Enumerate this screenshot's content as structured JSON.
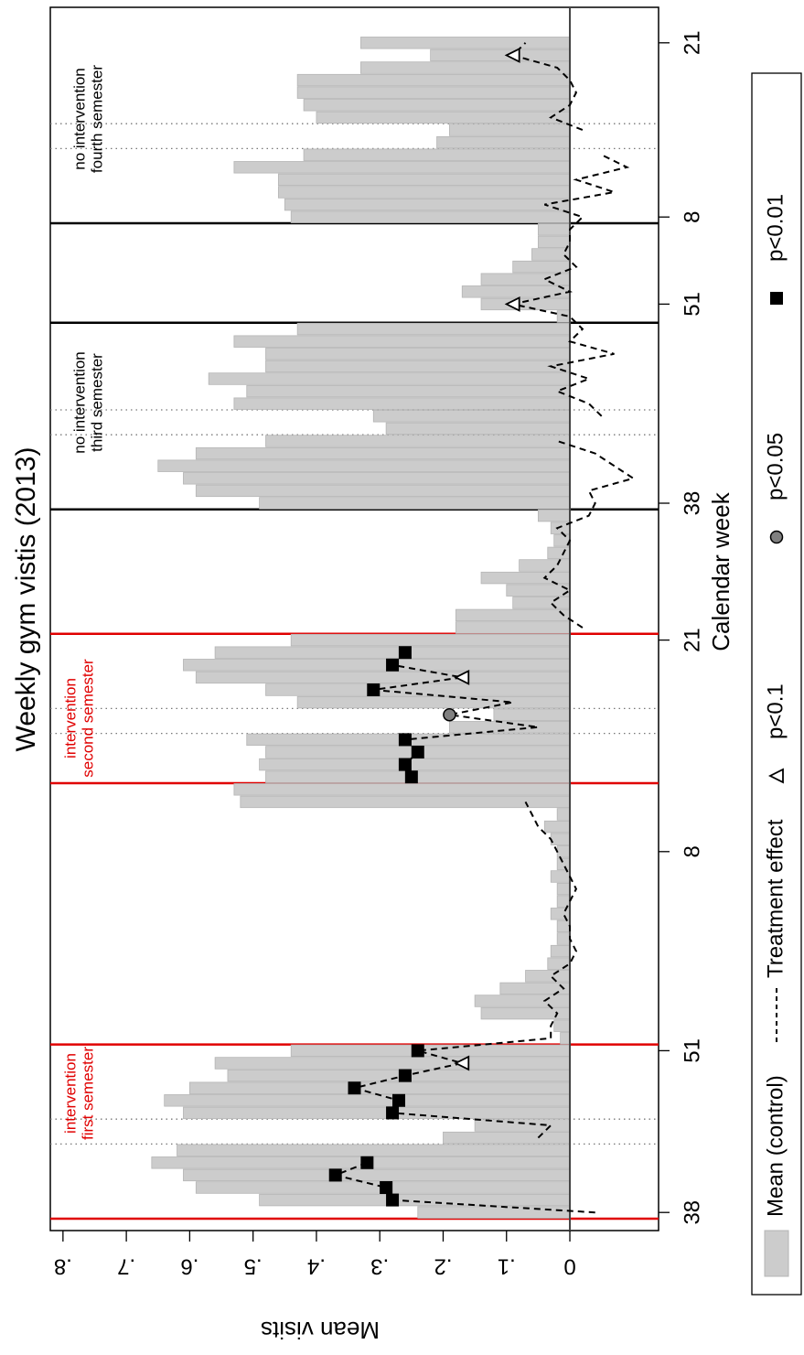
{
  "chart_data": {
    "type": "bar",
    "title": "Weekly gym vistis (2013)",
    "x_label": "Calendar week",
    "y_label": "Mean visits",
    "categories": [
      "38",
      null,
      null,
      null,
      null,
      null,
      null,
      null,
      null,
      null,
      null,
      null,
      null,
      "51",
      null,
      null,
      null,
      null,
      null,
      null,
      null,
      null,
      null,
      null,
      null,
      null,
      null,
      null,
      null,
      "8",
      null,
      null,
      null,
      null,
      null,
      null,
      null,
      null,
      null,
      null,
      null,
      null,
      null,
      null,
      null,
      null,
      "21",
      null,
      null,
      null,
      null,
      null,
      null,
      null,
      null,
      null,
      null,
      "38",
      null,
      null,
      null,
      null,
      null,
      null,
      null,
      null,
      null,
      null,
      null,
      null,
      null,
      null,
      null,
      "51",
      null,
      null,
      null,
      null,
      null,
      null,
      "8",
      null,
      null,
      null,
      null,
      null,
      null,
      null,
      null,
      null,
      null,
      null,
      null,
      null,
      "21"
    ],
    "series": [
      {
        "name": "Mean (control)",
        "type": "bar",
        "color": "#cccccc",
        "values": [
          0.24,
          0.49,
          0.59,
          0.61,
          0.66,
          0.62,
          0.2,
          0.15,
          0.61,
          0.64,
          0.6,
          0.54,
          0.56,
          0.44,
          0.015,
          0.025,
          0.14,
          0.15,
          0.11,
          0.07,
          0.035,
          0.03,
          0.02,
          0.02,
          0.03,
          0.02,
          0.02,
          0.03,
          0.02,
          0.02,
          0.03,
          0.04,
          0.02,
          0.52,
          0.53,
          0.48,
          0.49,
          0.48,
          0.51,
          0.19,
          0.12,
          0.43,
          0.48,
          0.59,
          0.61,
          0.56,
          0.44,
          0.18,
          0.18,
          0.09,
          0.1,
          0.14,
          0.08,
          0.035,
          0.025,
          0.03,
          0.05,
          0.49,
          0.59,
          0.61,
          0.65,
          0.59,
          0.48,
          0.29,
          0.31,
          0.53,
          0.51,
          0.57,
          0.48,
          0.48,
          0.53,
          0.43,
          0.02,
          0.14,
          0.17,
          0.14,
          0.09,
          0.06,
          0.05,
          0.05,
          0.44,
          0.45,
          0.46,
          0.46,
          0.53,
          0.42,
          0.21,
          0.19,
          0.4,
          0.42,
          0.43,
          0.43,
          0.33,
          0.22,
          0.33
        ]
      },
      {
        "name": "Treatment effect",
        "type": "line",
        "color": "#000000",
        "dashed": true,
        "values": [
          -0.04,
          0.28,
          0.29,
          0.37,
          0.32,
          null,
          0.05,
          0.03,
          0.28,
          0.27,
          0.34,
          0.26,
          0.17,
          0.24,
          0.03,
          0.03,
          0.02,
          0.04,
          0.01,
          0.03,
          0,
          -0.01,
          0,
          0,
          0.01,
          0,
          -0.01,
          0,
          0.01,
          0.02,
          0.03,
          0.05,
          0.06,
          0.07,
          null,
          0.25,
          0.26,
          0.24,
          0.26,
          0.05,
          0.19,
          0.09,
          0.31,
          0.17,
          0.28,
          0.26,
          null,
          -0.02,
          0.01,
          0.03,
          0,
          0.04,
          0.02,
          0.01,
          0,
          0.02,
          -0.03,
          -0.04,
          -0.03,
          -0.1,
          -0.07,
          -0.04,
          0.02,
          null,
          -0.05,
          -0.03,
          0.02,
          -0.03,
          0.03,
          -0.07,
          0,
          -0.02,
          0,
          0.09,
          0,
          0.04,
          -0.01,
          0.01,
          0,
          0,
          -0.02,
          0.04,
          -0.07,
          -0.01,
          -0.09,
          -0.05,
          null,
          -0.02,
          0.03,
          0,
          -0.01,
          0,
          0.02,
          0.09,
          0.07
        ]
      },
      {
        "name": "p<0.1",
        "type": "scatter",
        "marker": "triangle",
        "color": "#000000",
        "values": [
          null,
          null,
          null,
          null,
          null,
          null,
          null,
          null,
          null,
          null,
          null,
          null,
          0.17,
          null,
          null,
          null,
          null,
          null,
          null,
          null,
          null,
          null,
          null,
          null,
          null,
          null,
          null,
          null,
          null,
          null,
          null,
          null,
          null,
          null,
          null,
          null,
          null,
          null,
          null,
          null,
          null,
          null,
          null,
          0.17,
          null,
          null,
          null,
          null,
          null,
          null,
          null,
          null,
          null,
          null,
          null,
          null,
          null,
          null,
          null,
          null,
          null,
          null,
          null,
          null,
          null,
          null,
          null,
          null,
          null,
          null,
          null,
          null,
          null,
          0.09,
          null,
          null,
          null,
          null,
          null,
          null,
          null,
          null,
          null,
          null,
          null,
          null,
          null,
          null,
          null,
          null,
          null,
          null,
          null,
          0.09,
          null
        ]
      },
      {
        "name": "p<0.05",
        "type": "scatter",
        "marker": "circle",
        "color": "#808080",
        "values": [
          null,
          null,
          null,
          null,
          null,
          null,
          null,
          null,
          null,
          null,
          null,
          null,
          null,
          null,
          null,
          null,
          null,
          null,
          null,
          null,
          null,
          null,
          null,
          null,
          null,
          null,
          null,
          null,
          null,
          null,
          null,
          null,
          null,
          null,
          null,
          null,
          null,
          null,
          null,
          null,
          0.19,
          null,
          null,
          null,
          null,
          null,
          null,
          null,
          null,
          null,
          null,
          null,
          null,
          null,
          null,
          null,
          null,
          null,
          null,
          null,
          null,
          null,
          null,
          null,
          null,
          null,
          null,
          null,
          null,
          null,
          null,
          null,
          null,
          null,
          null,
          null,
          null,
          null,
          null,
          null,
          null,
          null,
          null,
          null,
          null,
          null,
          null,
          null,
          null,
          null,
          null,
          null,
          null,
          null,
          null
        ]
      },
      {
        "name": "p<0.01",
        "type": "scatter",
        "marker": "square",
        "color": "#000000",
        "values": [
          null,
          0.28,
          0.29,
          0.37,
          0.32,
          null,
          null,
          null,
          0.28,
          0.27,
          0.34,
          0.26,
          null,
          0.24,
          null,
          null,
          null,
          null,
          null,
          null,
          null,
          null,
          null,
          null,
          null,
          null,
          null,
          null,
          null,
          null,
          null,
          null,
          null,
          null,
          null,
          0.25,
          0.26,
          0.24,
          0.26,
          null,
          null,
          null,
          0.31,
          null,
          0.28,
          0.26,
          null,
          null,
          null,
          null,
          null,
          null,
          null,
          null,
          null,
          null,
          null,
          null,
          null,
          null,
          null,
          null,
          null,
          null,
          null,
          null,
          null,
          null,
          null,
          null,
          null,
          null,
          null,
          null,
          null,
          null,
          null,
          null,
          null,
          null,
          null,
          null,
          null,
          null,
          null,
          null,
          null,
          null,
          null,
          null,
          null,
          null,
          null,
          null,
          null
        ]
      }
    ],
    "ylim": [
      -0.14,
      0.82
    ],
    "yticks": [
      0,
      {
        "value": 0.1,
        "label": ".1"
      },
      {
        "value": 0.2,
        "label": ".2"
      },
      {
        "value": 0.3,
        "label": ".3"
      },
      {
        "value": 0.4,
        "label": ".4"
      },
      {
        "value": 0.5,
        "label": ".5"
      },
      {
        "value": 0.6,
        "label": ".6"
      },
      {
        "value": 0.7,
        "label": ".7"
      },
      {
        "value": 0.8,
        "label": ".8"
      }
    ],
    "reference_lines": {
      "red": {
        "color": "#e00000",
        "at": [
          0,
          14,
          35,
          47
        ]
      },
      "black": {
        "color": "#000000",
        "at": [
          57,
          72,
          80
        ]
      },
      "dotted": {
        "color": "#777777",
        "at": [
          6,
          8,
          39,
          41,
          63,
          65,
          86,
          88
        ]
      }
    },
    "annotations": [
      {
        "lines": [
          "intervention",
          "first semester"
        ],
        "color": "#e00000"
      },
      {
        "lines": [
          "intervention",
          "second semester"
        ],
        "color": "#e00000"
      },
      {
        "lines": [
          "no intervention",
          "third semester"
        ],
        "color": "#000000"
      },
      {
        "lines": [
          "no intervention",
          "fourth semester"
        ],
        "color": "#000000"
      }
    ],
    "legend": "bottom"
  }
}
